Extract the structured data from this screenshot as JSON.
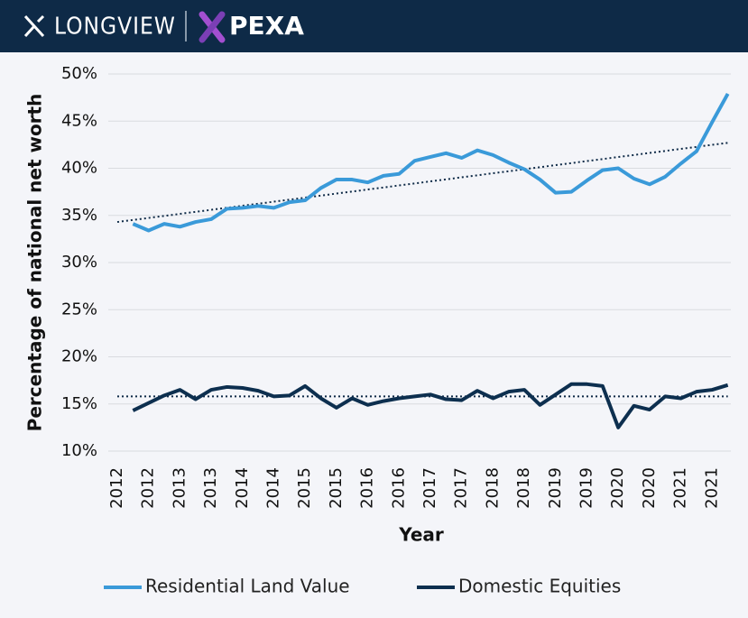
{
  "header": {
    "brand1": "LONGVIEW",
    "brand2": "PEXA"
  },
  "chart_data": {
    "type": "line",
    "ylabel": "Percentage of national net worth",
    "xlabel": "Year",
    "categories": [
      "2012",
      null,
      "2012",
      null,
      "2013",
      null,
      "2013",
      null,
      "2014",
      null,
      "2014",
      null,
      "2015",
      null,
      "2015",
      null,
      "2016",
      null,
      "2016",
      null,
      "2017",
      null,
      "2017",
      null,
      "2018",
      null,
      "2018",
      null,
      "2019",
      null,
      "2019",
      null,
      "2020",
      null,
      "2020",
      null,
      "2021",
      null,
      "2021",
      null
    ],
    "series": [
      {
        "name": "Residential Land Value",
        "color": "#3a9ad9",
        "values": [
          null,
          34.1,
          33.4,
          34.1,
          33.8,
          34.3,
          34.6,
          35.7,
          35.8,
          36.0,
          35.8,
          36.4,
          36.6,
          37.9,
          38.8,
          38.8,
          38.5,
          39.2,
          39.4,
          40.8,
          41.2,
          41.6,
          41.1,
          41.9,
          41.4,
          40.6,
          39.9,
          38.8,
          37.4,
          37.5,
          38.7,
          39.8,
          40.0,
          38.9,
          38.3,
          39.1,
          40.5,
          41.8,
          44.9,
          47.9
        ],
        "trend": [
          34.3,
          42.7
        ]
      },
      {
        "name": "Domestic Equities",
        "color": "#0d2f4f",
        "values": [
          null,
          14.3,
          15.1,
          15.9,
          16.5,
          15.5,
          16.5,
          16.8,
          16.7,
          16.4,
          15.8,
          15.9,
          16.9,
          15.6,
          14.6,
          15.6,
          14.9,
          15.3,
          15.6,
          15.8,
          16.0,
          15.5,
          15.4,
          16.4,
          15.6,
          16.3,
          16.5,
          14.9,
          16.0,
          17.1,
          17.1,
          16.9,
          12.5,
          14.8,
          14.4,
          15.8,
          15.6,
          16.3,
          16.5,
          17.0
        ],
        "trend": [
          15.8,
          15.8
        ]
      }
    ],
    "ylim": [
      10,
      50
    ],
    "yticks": [
      {
        "value": 10,
        "label": "10%"
      },
      {
        "value": 15,
        "label": "15%"
      },
      {
        "value": 20,
        "label": "20%"
      },
      {
        "value": 25,
        "label": "25%"
      },
      {
        "value": 30,
        "label": "30%"
      },
      {
        "value": 35,
        "label": "35%"
      },
      {
        "value": 40,
        "label": "40%"
      },
      {
        "value": 45,
        "label": "45%"
      },
      {
        "value": 50,
        "label": "50%"
      }
    ],
    "grid": true,
    "legend": "bottom"
  }
}
